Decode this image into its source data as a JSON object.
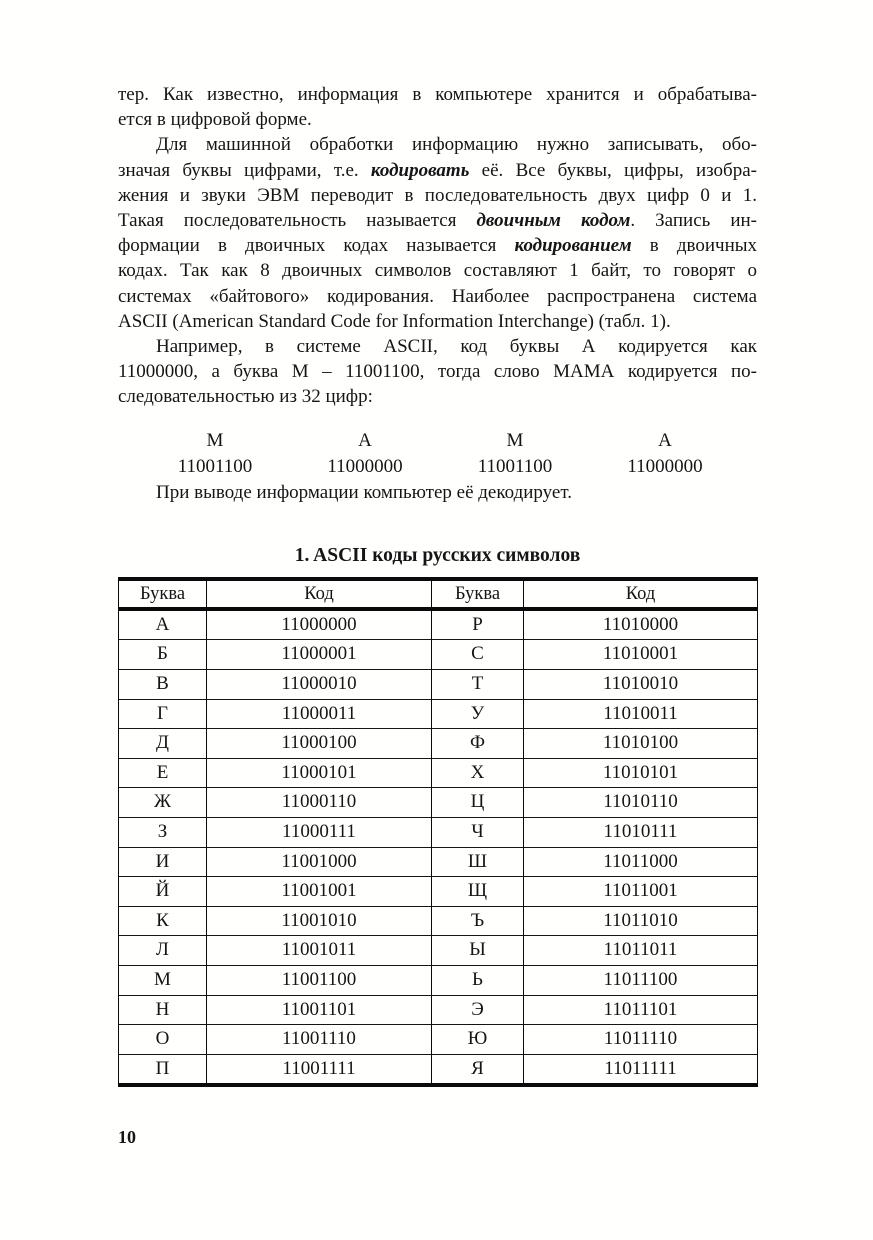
{
  "page_number": "10",
  "body": {
    "paragraphs": [
      {
        "indent": false,
        "lines": [
          [
            {
              "t": "тер. Как известно, информация в компьютере хранится и обрабатыва-"
            }
          ],
          [
            {
              "t": "ется в цифровой форме."
            }
          ]
        ]
      },
      {
        "indent": true,
        "lines": [
          [
            {
              "t": "Для машинной обработки информацию нужно записывать, обо-"
            }
          ],
          [
            {
              "t": "значая буквы цифрами, т.е. "
            },
            {
              "t": "кодировать",
              "s": "bi"
            },
            {
              "t": " её. Все буквы, цифры, изобра-"
            }
          ],
          [
            {
              "t": "жения и звуки ЭВМ переводит в последовательность двух цифр 0 и 1."
            }
          ],
          [
            {
              "t": "Такая последовательность называется "
            },
            {
              "t": "двоичным кодом",
              "s": "bi"
            },
            {
              "t": ". Запись ин-"
            }
          ],
          [
            {
              "t": "формации в двоичных кодах называется "
            },
            {
              "t": "кодированием",
              "s": "bi"
            },
            {
              "t": " в двоичных"
            }
          ],
          [
            {
              "t": "кодах. Так как 8 двоичных символов составляют 1 байт, то говорят о"
            }
          ],
          [
            {
              "t": "системах «байтового» кодирования. Наиболее распространена система"
            }
          ],
          [
            {
              "t": "ASCII (American Standard Code for Information Interchange) (табл. 1)."
            }
          ]
        ]
      },
      {
        "indent": true,
        "lines": [
          [
            {
              "t": "Например, в системе ASCII, код буквы А кодируется как"
            }
          ],
          [
            {
              "t": "11000000, а буква М – 11001100, тогда слово МАМА кодируется по-"
            }
          ],
          [
            {
              "t": "следовательностью из 32 цифр:"
            }
          ]
        ]
      }
    ],
    "example": {
      "letters": [
        "М",
        "А",
        "М",
        "А"
      ],
      "codes": [
        "11001100",
        "11000000",
        "11001100",
        "11000000"
      ]
    },
    "closing": {
      "indent": true,
      "lines": [
        [
          {
            "t": "При выводе информации компьютер её декодирует."
          }
        ]
      ]
    }
  },
  "table": {
    "title": "1. ASCII коды русских символов",
    "headers": [
      "Буква",
      "Код",
      "Буква",
      "Код"
    ],
    "rows": [
      [
        "А",
        "11000000",
        "Р",
        "11010000"
      ],
      [
        "Б",
        "11000001",
        "С",
        "11010001"
      ],
      [
        "В",
        "11000010",
        "Т",
        "11010010"
      ],
      [
        "Г",
        "11000011",
        "У",
        "11010011"
      ],
      [
        "Д",
        "11000100",
        "Ф",
        "11010100"
      ],
      [
        "Е",
        "11000101",
        "Х",
        "11010101"
      ],
      [
        "Ж",
        "11000110",
        "Ц",
        "11010110"
      ],
      [
        "З",
        "11000111",
        "Ч",
        "11010111"
      ],
      [
        "И",
        "11001000",
        "Ш",
        "11011000"
      ],
      [
        "Й",
        "11001001",
        "Щ",
        "11011001"
      ],
      [
        "К",
        "11001010",
        "Ъ",
        "11011010"
      ],
      [
        "Л",
        "11001011",
        "Ы",
        "11011011"
      ],
      [
        "М",
        "11001100",
        "Ь",
        "11011100"
      ],
      [
        "Н",
        "11001101",
        "Э",
        "11011101"
      ],
      [
        "О",
        "11001110",
        "Ю",
        "11011110"
      ],
      [
        "П",
        "11001111",
        "Я",
        "11011111"
      ]
    ]
  },
  "colors": {
    "text": "#151515",
    "background": "#fffffe",
    "rule": "#0a0a0a"
  }
}
